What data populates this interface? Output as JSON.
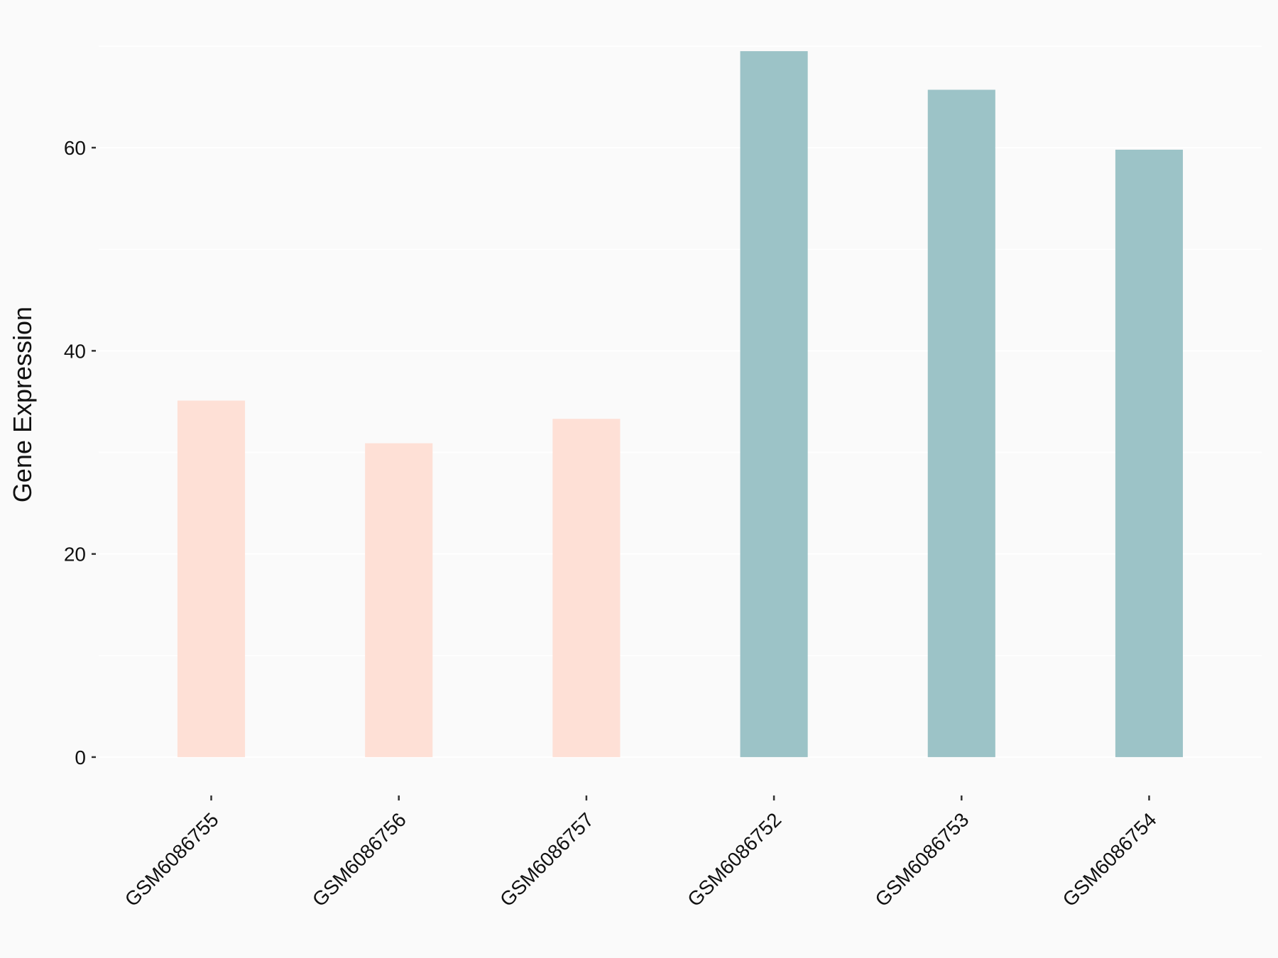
{
  "chart_data": {
    "type": "bar",
    "y_label": "Gene Expression",
    "categories": [
      "GSM6086755",
      "GSM6086756",
      "GSM6086757",
      "GSM6086752",
      "GSM6086753",
      "GSM6086754"
    ],
    "values": [
      35.1,
      30.9,
      33.3,
      69.5,
      65.7,
      59.8
    ],
    "colors": [
      "#fee0d6",
      "#fee0d6",
      "#fee0d6",
      "#9cc3c7",
      "#9cc3c7",
      "#9cc3c7"
    ],
    "ylim": [
      -3.5,
      73
    ],
    "yticks": [
      0,
      20,
      40,
      60
    ],
    "minor_yticks": [
      10,
      30,
      50,
      70
    ],
    "grid": true
  }
}
